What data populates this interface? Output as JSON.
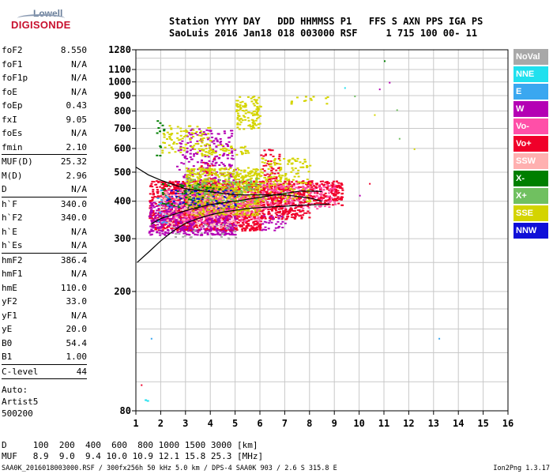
{
  "logo": {
    "top": "Lowell",
    "bottom": "DIGISONDE"
  },
  "header": {
    "line1": "Station YYYY DAY   DDD HHMMSS P1   FFS S AXN PPS IGA PS",
    "line2": "SaoLuis 2016 Jan18 018 003000 RSF     1 715 100 00- 11"
  },
  "params": [
    [
      {
        "k": "foF2",
        "v": "8.550"
      },
      {
        "k": "foF1",
        "v": "N/A"
      },
      {
        "k": "foF1p",
        "v": "N/A"
      },
      {
        "k": "foE",
        "v": "N/A"
      },
      {
        "k": "foEp",
        "v": "0.43"
      },
      {
        "k": "fxI",
        "v": "9.05"
      },
      {
        "k": "foEs",
        "v": "N/A"
      },
      {
        "k": "fmin",
        "v": "2.10"
      }
    ],
    [
      {
        "k": "MUF(D)",
        "v": "25.32"
      },
      {
        "k": "M(D)",
        "v": "2.96"
      },
      {
        "k": "D",
        "v": "N/A"
      }
    ],
    [
      {
        "k": "h`F",
        "v": "340.0"
      },
      {
        "k": "h`F2",
        "v": "340.0"
      },
      {
        "k": "h`E",
        "v": "N/A"
      },
      {
        "k": "h`Es",
        "v": "N/A"
      }
    ],
    [
      {
        "k": "hmF2",
        "v": "386.4"
      },
      {
        "k": "hmF1",
        "v": "N/A"
      },
      {
        "k": "hmE",
        "v": "110.0"
      },
      {
        "k": "yF2",
        "v": "33.0"
      },
      {
        "k": "yF1",
        "v": "N/A"
      },
      {
        "k": "yE",
        "v": "20.0"
      },
      {
        "k": "B0",
        "v": "54.4"
      },
      {
        "k": "B1",
        "v": "1.00"
      }
    ],
    [
      {
        "k": "C-level",
        "v": "44"
      }
    ]
  ],
  "scaler": {
    "l1": "Auto:",
    "l2": "Artist5",
    "l3": "500200"
  },
  "legend": [
    {
      "label": "NoVal",
      "color": "#a8a8a8"
    },
    {
      "label": "NNE",
      "color": "#20e0ee"
    },
    {
      "label": "E",
      "color": "#3aa7f0"
    },
    {
      "label": "W",
      "color": "#b400b4"
    },
    {
      "label": "Vo-",
      "color": "#ff4fa8"
    },
    {
      "label": "Vo+",
      "color": "#f0002a"
    },
    {
      "label": "SSW",
      "color": "#ffb0b0"
    },
    {
      "label": "X-",
      "color": "#007f00"
    },
    {
      "label": "X+",
      "color": "#70c060"
    },
    {
      "label": "SSE",
      "color": "#d4d400"
    },
    {
      "label": "NNW",
      "color": "#1010d8"
    }
  ],
  "dmuf": {
    "line1": "D     100  200  400  600  800 1000 1500 3000 [km]",
    "line2": "MUF   8.9  9.0  9.4 10.0 10.9 12.1 15.8 25.3 [MHz]"
  },
  "footer": "SAA0K_2016018003000.RSF / 300fx256h 50 kHz 5.0 km / DPS-4 SAA0K 903 / 2.6 S 315.8 E",
  "version": "Ion2Png 1.3.17",
  "chart_data": {
    "type": "scatter",
    "title": "",
    "xlabel": "",
    "ylabel": "",
    "xlim": [
      1,
      16
    ],
    "ylim": [
      80,
      1280
    ],
    "x_ticks": [
      1,
      2,
      3,
      4,
      5,
      6,
      7,
      8,
      9,
      10,
      11,
      12,
      13,
      14,
      15,
      16
    ],
    "y_ticks": [
      80,
      200,
      300,
      400,
      500,
      600,
      700,
      800,
      900,
      1000,
      1100,
      1280
    ],
    "y_scale": "log",
    "grid": true,
    "series": [
      {
        "name": "Vo+",
        "color": "#f0002a",
        "clusters": [
          [
            1.5,
            2.0,
            320,
            470,
            0.5
          ],
          [
            2.0,
            6.0,
            320,
            470,
            1.0
          ],
          [
            6.0,
            8.0,
            350,
            470,
            0.8
          ],
          [
            8.0,
            9.3,
            390,
            470,
            0.8
          ],
          [
            3.5,
            4.2,
            360,
            560,
            0.3
          ],
          [
            6.0,
            6.8,
            380,
            600,
            0.3
          ]
        ]
      },
      {
        "name": "W",
        "color": "#b400b4",
        "clusters": [
          [
            1.5,
            5.0,
            310,
            400,
            0.7
          ],
          [
            3.0,
            5.0,
            420,
            700,
            0.25
          ],
          [
            6.0,
            7.0,
            320,
            360,
            0.3
          ],
          [
            2.6,
            3.2,
            380,
            640,
            0.2
          ]
        ]
      },
      {
        "name": "SSE",
        "color": "#d4d400",
        "clusters": [
          [
            3.0,
            6.0,
            360,
            520,
            0.8
          ],
          [
            5.0,
            6.0,
            700,
            900,
            0.5
          ],
          [
            2.0,
            4.0,
            580,
            720,
            0.25
          ],
          [
            3.5,
            5.5,
            570,
            620,
            0.4
          ],
          [
            6.0,
            8.0,
            400,
            560,
            0.3
          ],
          [
            7.0,
            8.7,
            850,
            900,
            0.15
          ]
        ]
      },
      {
        "name": "Vo-",
        "color": "#ff4fa8",
        "clusters": [
          [
            2.0,
            6.0,
            340,
            440,
            0.3
          ],
          [
            6.0,
            9.0,
            380,
            460,
            0.3
          ]
        ]
      },
      {
        "name": "X-",
        "color": "#007f00",
        "clusters": [
          [
            2.0,
            4.5,
            380,
            460,
            0.2
          ],
          [
            1.8,
            2.1,
            560,
            760,
            0.15
          ]
        ]
      },
      {
        "name": "X+",
        "color": "#70c060",
        "clusters": [
          [
            3.0,
            6.0,
            400,
            480,
            0.2
          ]
        ]
      },
      {
        "name": "NNW",
        "color": "#1010d8",
        "clusters": [
          [
            2.0,
            5.0,
            380,
            440,
            0.15
          ]
        ]
      },
      {
        "name": "E",
        "color": "#3aa7f0",
        "clusters": [
          [
            1.8,
            2.4,
            340,
            440,
            0.15
          ]
        ]
      },
      {
        "name": "NNE",
        "color": "#20e0ee",
        "clusters": [
          [
            1.3,
            1.8,
            82,
            90,
            0.05
          ]
        ]
      },
      {
        "name": "SSW",
        "color": "#ffb0b0",
        "clusters": [
          [
            2.0,
            5.0,
            330,
            430,
            0.15
          ]
        ]
      },
      {
        "name": "NoVal",
        "color": "#a8a8a8",
        "clusters": [
          [
            2.5,
            5.0,
            300,
            340,
            0.1
          ]
        ]
      }
    ],
    "isolated_points": [
      {
        "x": 11.0,
        "y": 1180,
        "color": "#007f00"
      },
      {
        "x": 10.8,
        "y": 950,
        "color": "#b400b4"
      },
      {
        "x": 11.2,
        "y": 1000,
        "color": "#b400b4"
      },
      {
        "x": 9.4,
        "y": 960,
        "color": "#20e0ee"
      },
      {
        "x": 9.8,
        "y": 900,
        "color": "#70c060"
      },
      {
        "x": 11.5,
        "y": 810,
        "color": "#70c060"
      },
      {
        "x": 10.6,
        "y": 780,
        "color": "#d4d400"
      },
      {
        "x": 11.6,
        "y": 650,
        "color": "#70c060"
      },
      {
        "x": 10.4,
        "y": 460,
        "color": "#f0002a"
      },
      {
        "x": 12.2,
        "y": 600,
        "color": "#d4d400"
      },
      {
        "x": 13.2,
        "y": 140,
        "color": "#3aa7f0"
      },
      {
        "x": 1.6,
        "y": 140,
        "color": "#3aa7f0"
      },
      {
        "x": 1.2,
        "y": 98,
        "color": "#f0002a"
      },
      {
        "x": 10.0,
        "y": 420,
        "color": "#b400b4"
      }
    ],
    "lines": [
      {
        "name": "X trace",
        "points": [
          [
            1.05,
            250
          ],
          [
            1.5,
            270
          ],
          [
            2.0,
            295
          ],
          [
            2.5,
            318
          ],
          [
            3.0,
            338
          ],
          [
            3.5,
            350
          ],
          [
            4.0,
            360
          ],
          [
            4.5,
            368
          ],
          [
            5.0,
            373
          ],
          [
            5.5,
            378
          ],
          [
            6.0,
            381
          ],
          [
            6.5,
            383
          ],
          [
            7.0,
            385
          ],
          [
            7.5,
            387
          ],
          [
            8.0,
            389
          ],
          [
            8.5,
            390
          ],
          [
            8.8,
            392
          ]
        ]
      },
      {
        "name": "O trace",
        "points": [
          [
            1.6,
            335
          ],
          [
            2.0,
            350
          ],
          [
            3.0,
            372
          ],
          [
            4.0,
            390
          ],
          [
            5.0,
            400
          ],
          [
            6.0,
            412
          ],
          [
            7.0,
            425
          ],
          [
            7.6,
            432
          ],
          [
            8.2,
            432
          ],
          [
            8.5,
            431
          ]
        ]
      },
      {
        "name": "profile",
        "points": [
          [
            1.0,
            520
          ],
          [
            1.5,
            490
          ],
          [
            2.0,
            470
          ],
          [
            3.0,
            440
          ],
          [
            4.0,
            430
          ],
          [
            5.0,
            420
          ],
          [
            6.0,
            420
          ],
          [
            7.0,
            420
          ],
          [
            8.0,
            410
          ],
          [
            8.5,
            400
          ]
        ]
      }
    ]
  }
}
